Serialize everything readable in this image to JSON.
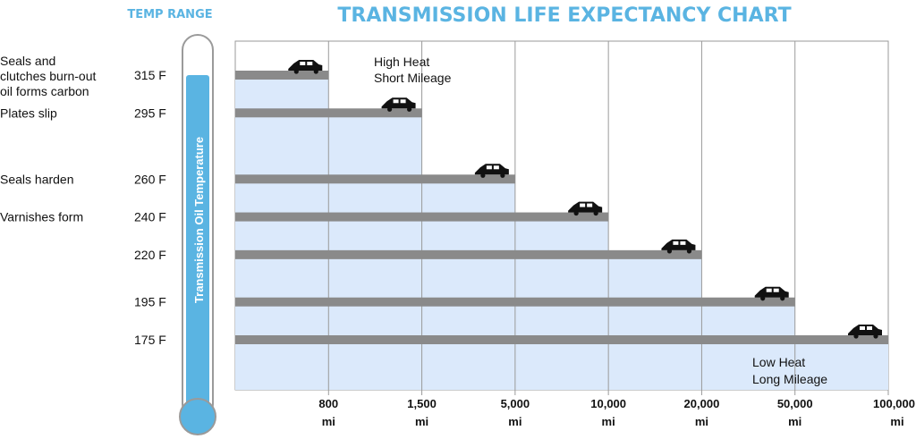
{
  "chart_data": {
    "type": "bar",
    "title": "TRANSMISSION LIFE EXPECTANCY CHART",
    "temp_range_label": "TEMP RANGE",
    "thermometer_label": "Transmission Oil Temperature",
    "categories": [
      "800 mi",
      "1,500 mi",
      "5,000 mi",
      "10,000 mi",
      "20,000 mi",
      "50,000 mi",
      "100,000 mi"
    ],
    "x_ticks": [
      {
        "value": "800",
        "unit": "mi"
      },
      {
        "value": "1,500",
        "unit": "mi"
      },
      {
        "value": "5,000",
        "unit": "mi"
      },
      {
        "value": "10,000",
        "unit": "mi"
      },
      {
        "value": "20,000",
        "unit": "mi"
      },
      {
        "value": "50,000",
        "unit": "mi"
      },
      {
        "value": "100,000",
        "unit": "mi"
      }
    ],
    "temperatures": [
      "315 F",
      "295 F",
      "260 F",
      "240 F",
      "220 F",
      "195 F",
      "175 F"
    ],
    "values": [
      315,
      295,
      260,
      240,
      220,
      195,
      175
    ],
    "effects": [
      {
        "at": "315 F",
        "lines": [
          "Seals and",
          "clutches burn-out",
          "oil forms carbon"
        ]
      },
      {
        "at": "295 F",
        "lines": [
          "Plates slip"
        ]
      },
      {
        "at": "260 F",
        "lines": [
          "Seals harden"
        ]
      },
      {
        "at": "240 F",
        "lines": [
          "Varnishes form"
        ]
      }
    ],
    "annotations": {
      "high": [
        "High Heat",
        "Short Mileage"
      ],
      "low": [
        "Low Heat",
        "Long Mileage"
      ]
    },
    "colors": {
      "title": "#5ab4e2",
      "bar_fill": "#dbe9fb",
      "bar_line": "#8a8a8a",
      "thermometer": "#5ab4e2",
      "grid": "#9a9a9a"
    }
  }
}
